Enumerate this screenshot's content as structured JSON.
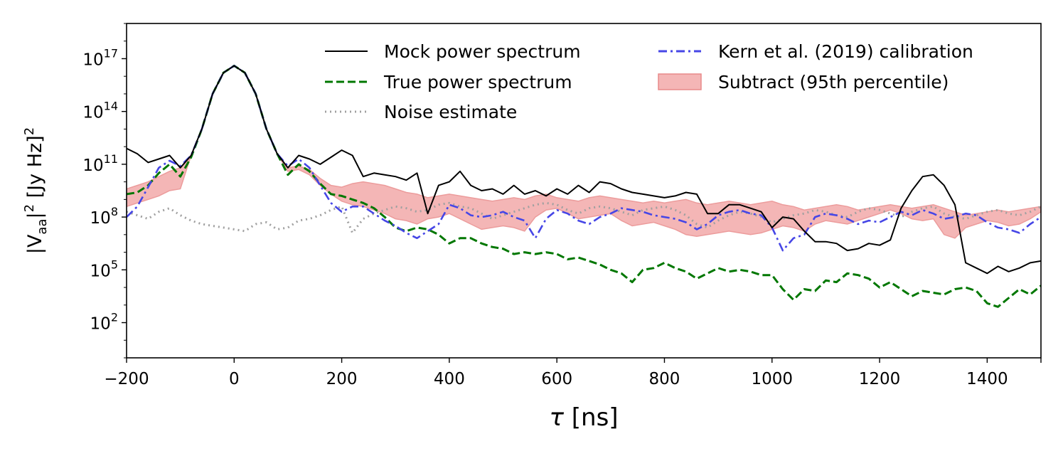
{
  "chart_data": {
    "type": "line",
    "xlabel_symbol": "τ",
    "xlabel_unit": "[ns]",
    "ylabel_main": "|V",
    "ylabel_sub": "aa",
    "ylabel_sup": "2",
    "ylabel_unit": "[Jy Hz]",
    "ylabel_unit_sup": "2",
    "y_scale": "log",
    "xlim": [
      -200,
      1500
    ],
    "ylim_log10": [
      0,
      19
    ],
    "x_ticks": [
      -200,
      0,
      200,
      400,
      600,
      800,
      1000,
      1200,
      1400
    ],
    "x_tick_labels": [
      "−200",
      "0",
      "200",
      "400",
      "600",
      "800",
      "1000",
      "1200",
      "1400"
    ],
    "y_ticks_log10": [
      2,
      5,
      8,
      11,
      14,
      17
    ],
    "y_tick_base": "10",
    "y_tick_exponents": [
      "2",
      "5",
      "8",
      "11",
      "14",
      "17"
    ],
    "legend_placement": "top-right",
    "grid": false,
    "x": [
      -200,
      -180,
      -160,
      -140,
      -120,
      -100,
      -80,
      -60,
      -40,
      -20,
      0,
      20,
      40,
      60,
      80,
      100,
      120,
      140,
      160,
      180,
      200,
      220,
      240,
      260,
      280,
      300,
      320,
      340,
      360,
      380,
      400,
      420,
      440,
      460,
      480,
      500,
      520,
      540,
      560,
      580,
      600,
      620,
      640,
      660,
      680,
      700,
      720,
      740,
      760,
      780,
      800,
      820,
      840,
      860,
      880,
      900,
      920,
      940,
      960,
      980,
      1000,
      1020,
      1040,
      1060,
      1080,
      1100,
      1120,
      1140,
      1160,
      1180,
      1200,
      1220,
      1240,
      1260,
      1280,
      1300,
      1320,
      1340,
      1360,
      1380,
      1400,
      1420,
      1440,
      1460,
      1480,
      1500
    ],
    "series": [
      {
        "name": "Mock power spectrum",
        "color": "#000000",
        "style": "solid",
        "log10_values": [
          11.9,
          11.6,
          11.1,
          11.3,
          11.5,
          10.8,
          11.5,
          13.0,
          15.0,
          16.2,
          16.6,
          16.2,
          15.0,
          13.0,
          11.6,
          10.8,
          11.5,
          11.3,
          11.0,
          11.4,
          11.8,
          11.5,
          10.3,
          10.5,
          10.4,
          10.3,
          10.1,
          10.5,
          8.2,
          9.8,
          10.0,
          10.6,
          9.8,
          9.5,
          9.6,
          9.3,
          9.8,
          9.3,
          9.5,
          9.2,
          9.6,
          9.3,
          9.8,
          9.4,
          10.0,
          9.9,
          9.6,
          9.4,
          9.3,
          9.2,
          9.1,
          9.2,
          9.4,
          9.3,
          8.2,
          8.2,
          8.7,
          8.7,
          8.5,
          8.3,
          7.4,
          8.0,
          7.9,
          7.2,
          6.6,
          6.6,
          6.5,
          6.1,
          6.2,
          6.5,
          6.4,
          6.7,
          8.5,
          9.5,
          10.3,
          10.4,
          9.8,
          8.7,
          5.4,
          5.1,
          4.8,
          5.2,
          4.9,
          5.1,
          5.4,
          5.5
        ]
      },
      {
        "name": "True power spectrum",
        "color": "#007700",
        "style": "dashed",
        "log10_values": [
          9.3,
          9.4,
          9.8,
          10.5,
          11.0,
          10.3,
          11.4,
          13.0,
          15.0,
          16.2,
          16.6,
          16.2,
          15.0,
          13.0,
          11.6,
          10.4,
          11.0,
          10.6,
          9.9,
          9.3,
          9.2,
          9.0,
          8.8,
          8.5,
          8.0,
          7.4,
          7.2,
          7.4,
          7.3,
          7.0,
          6.5,
          6.8,
          6.8,
          6.5,
          6.3,
          6.2,
          5.9,
          6.0,
          5.9,
          6.0,
          5.9,
          5.6,
          5.7,
          5.5,
          5.3,
          5.0,
          4.8,
          4.3,
          5.0,
          5.1,
          5.4,
          5.1,
          4.9,
          4.5,
          4.8,
          5.1,
          4.9,
          5.0,
          4.9,
          4.7,
          4.7,
          3.9,
          3.3,
          3.9,
          3.8,
          4.4,
          4.3,
          4.8,
          4.7,
          4.5,
          4.0,
          4.3,
          3.9,
          3.5,
          3.8,
          3.7,
          3.6,
          3.9,
          4.0,
          3.8,
          3.1,
          2.9,
          3.4,
          3.9,
          3.6,
          4.1
        ]
      },
      {
        "name": "Noise estimate",
        "color": "#a0a0a0",
        "style": "dotted",
        "log10_values": [
          8.3,
          8.1,
          7.9,
          8.3,
          8.5,
          8.1,
          7.8,
          7.6,
          7.5,
          7.4,
          7.3,
          7.2,
          7.6,
          7.7,
          7.3,
          7.4,
          7.8,
          7.9,
          8.1,
          8.4,
          8.6,
          7.1,
          7.9,
          8.2,
          8.4,
          8.6,
          8.5,
          8.3,
          8.4,
          8.7,
          8.8,
          8.6,
          8.5,
          8.2,
          7.9,
          8.1,
          8.3,
          8.5,
          8.7,
          8.8,
          8.7,
          8.4,
          8.2,
          8.5,
          8.6,
          8.5,
          8.3,
          8.1,
          8.4,
          8.5,
          8.6,
          8.4,
          8.1,
          7.6,
          7.4,
          7.8,
          8.1,
          8.3,
          8.2,
          8.0,
          7.7,
          7.9,
          8.1,
          8.2,
          8.4,
          8.3,
          8.1,
          8.0,
          8.3,
          8.5,
          8.4,
          8.2,
          8.0,
          8.3,
          8.5,
          8.6,
          8.2,
          8.0,
          7.9,
          8.1,
          8.3,
          8.4,
          8.2,
          8.1,
          8.3,
          8.6
        ]
      },
      {
        "name": "Kern et al. (2019) calibration",
        "color": "#4646e6",
        "style": "dashdot",
        "log10_values": [
          8.0,
          8.6,
          9.7,
          10.8,
          11.2,
          10.9,
          11.5,
          13.0,
          15.0,
          16.2,
          16.6,
          16.2,
          15.0,
          13.0,
          11.6,
          10.9,
          11.3,
          10.8,
          9.8,
          8.8,
          8.3,
          8.6,
          8.6,
          8.2,
          7.8,
          7.5,
          7.1,
          6.8,
          7.2,
          7.6,
          8.7,
          8.5,
          8.1,
          8.0,
          8.1,
          8.3,
          8.0,
          7.8,
          6.8,
          7.9,
          8.4,
          8.2,
          7.8,
          7.6,
          8.0,
          8.2,
          8.5,
          8.4,
          8.3,
          8.1,
          8.0,
          7.9,
          7.7,
          7.3,
          7.6,
          8.1,
          8.3,
          8.4,
          8.2,
          8.1,
          7.4,
          6.1,
          6.8,
          7.0,
          8.0,
          8.2,
          8.1,
          7.9,
          7.6,
          7.8,
          7.7,
          8.0,
          8.3,
          8.1,
          8.4,
          8.2,
          7.9,
          8.0,
          8.2,
          8.1,
          7.7,
          7.4,
          7.3,
          7.1,
          7.6,
          8.0
        ]
      }
    ],
    "band": {
      "name": "Subtract (95th percentile)",
      "color": "#e85a5a",
      "lower_log10": [
        8.6,
        8.8,
        9.0,
        9.2,
        9.5,
        9.6,
        11.5,
        13.0,
        15.0,
        16.2,
        16.6,
        16.2,
        15.0,
        13.0,
        11.6,
        10.6,
        10.7,
        10.4,
        9.8,
        9.3,
        8.9,
        8.7,
        8.6,
        8.4,
        8.2,
        7.9,
        7.8,
        7.6,
        7.9,
        8.0,
        8.2,
        7.9,
        7.6,
        7.3,
        7.4,
        7.5,
        7.4,
        7.2,
        8.0,
        8.4,
        8.5,
        8.2,
        7.9,
        8.0,
        8.1,
        8.2,
        7.8,
        7.5,
        7.6,
        7.7,
        7.5,
        7.3,
        7.0,
        6.9,
        7.0,
        7.1,
        7.2,
        7.1,
        7.0,
        7.1,
        7.3,
        7.5,
        7.4,
        7.2,
        7.6,
        7.8,
        7.7,
        7.6,
        7.8,
        8.0,
        8.2,
        8.4,
        8.2,
        7.9,
        7.8,
        7.9,
        7.0,
        6.8,
        7.4,
        7.6,
        7.8,
        7.7,
        7.5,
        7.6,
        7.9,
        8.3
      ],
      "upper_log10": [
        9.6,
        9.8,
        10.0,
        10.3,
        10.6,
        10.8,
        11.5,
        13.0,
        15.0,
        16.2,
        16.6,
        16.2,
        15.0,
        13.0,
        11.6,
        10.8,
        10.9,
        10.7,
        10.2,
        9.8,
        9.7,
        9.9,
        10.0,
        9.9,
        9.8,
        9.6,
        9.4,
        9.3,
        9.1,
        9.2,
        9.3,
        9.2,
        9.1,
        9.0,
        8.9,
        9.0,
        9.1,
        9.0,
        9.2,
        9.3,
        9.1,
        9.0,
        8.9,
        9.1,
        9.2,
        9.1,
        9.0,
        8.9,
        8.8,
        8.9,
        8.8,
        8.9,
        9.0,
        8.8,
        8.7,
        8.8,
        8.9,
        8.8,
        8.7,
        8.8,
        8.9,
        8.7,
        8.6,
        8.4,
        8.5,
        8.6,
        8.7,
        8.6,
        8.4,
        8.5,
        8.6,
        8.7,
        8.6,
        8.5,
        8.6,
        8.7,
        8.5,
        8.3,
        8.1,
        8.2,
        8.3,
        8.4,
        8.3,
        8.4,
        8.5,
        8.6
      ]
    }
  }
}
